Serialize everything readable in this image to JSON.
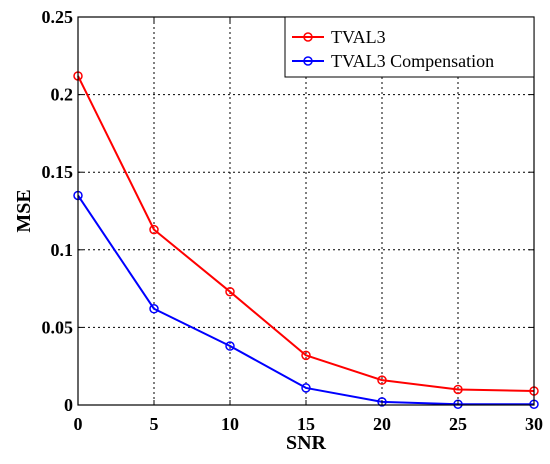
{
  "chart_data": {
    "type": "line",
    "xlabel": "SNR",
    "ylabel": "MSE",
    "xlim": [
      0,
      30
    ],
    "ylim": [
      0,
      0.25
    ],
    "xticks": [
      0,
      5,
      10,
      15,
      20,
      25,
      30
    ],
    "xtick_labels": [
      "0",
      "5",
      "10",
      "15",
      "20",
      "25",
      "30"
    ],
    "yticks": [
      0,
      0.05,
      0.1,
      0.15,
      0.2,
      0.25
    ],
    "ytick_labels": [
      "0",
      "0.05",
      "0.1",
      "0.15",
      "0.2",
      "0.25"
    ],
    "grid": true,
    "legend_position": "top-right",
    "x": [
      0,
      5,
      10,
      15,
      20,
      25,
      30
    ],
    "series": [
      {
        "name": "TVAL3",
        "color": "#ff0000",
        "values": [
          0.212,
          0.113,
          0.073,
          0.032,
          0.016,
          0.01,
          0.009
        ]
      },
      {
        "name": "TVAL3 Compensation",
        "color": "#0000ff",
        "values": [
          0.135,
          0.062,
          0.038,
          0.011,
          0.002,
          0.0005,
          0.0005
        ]
      }
    ]
  }
}
